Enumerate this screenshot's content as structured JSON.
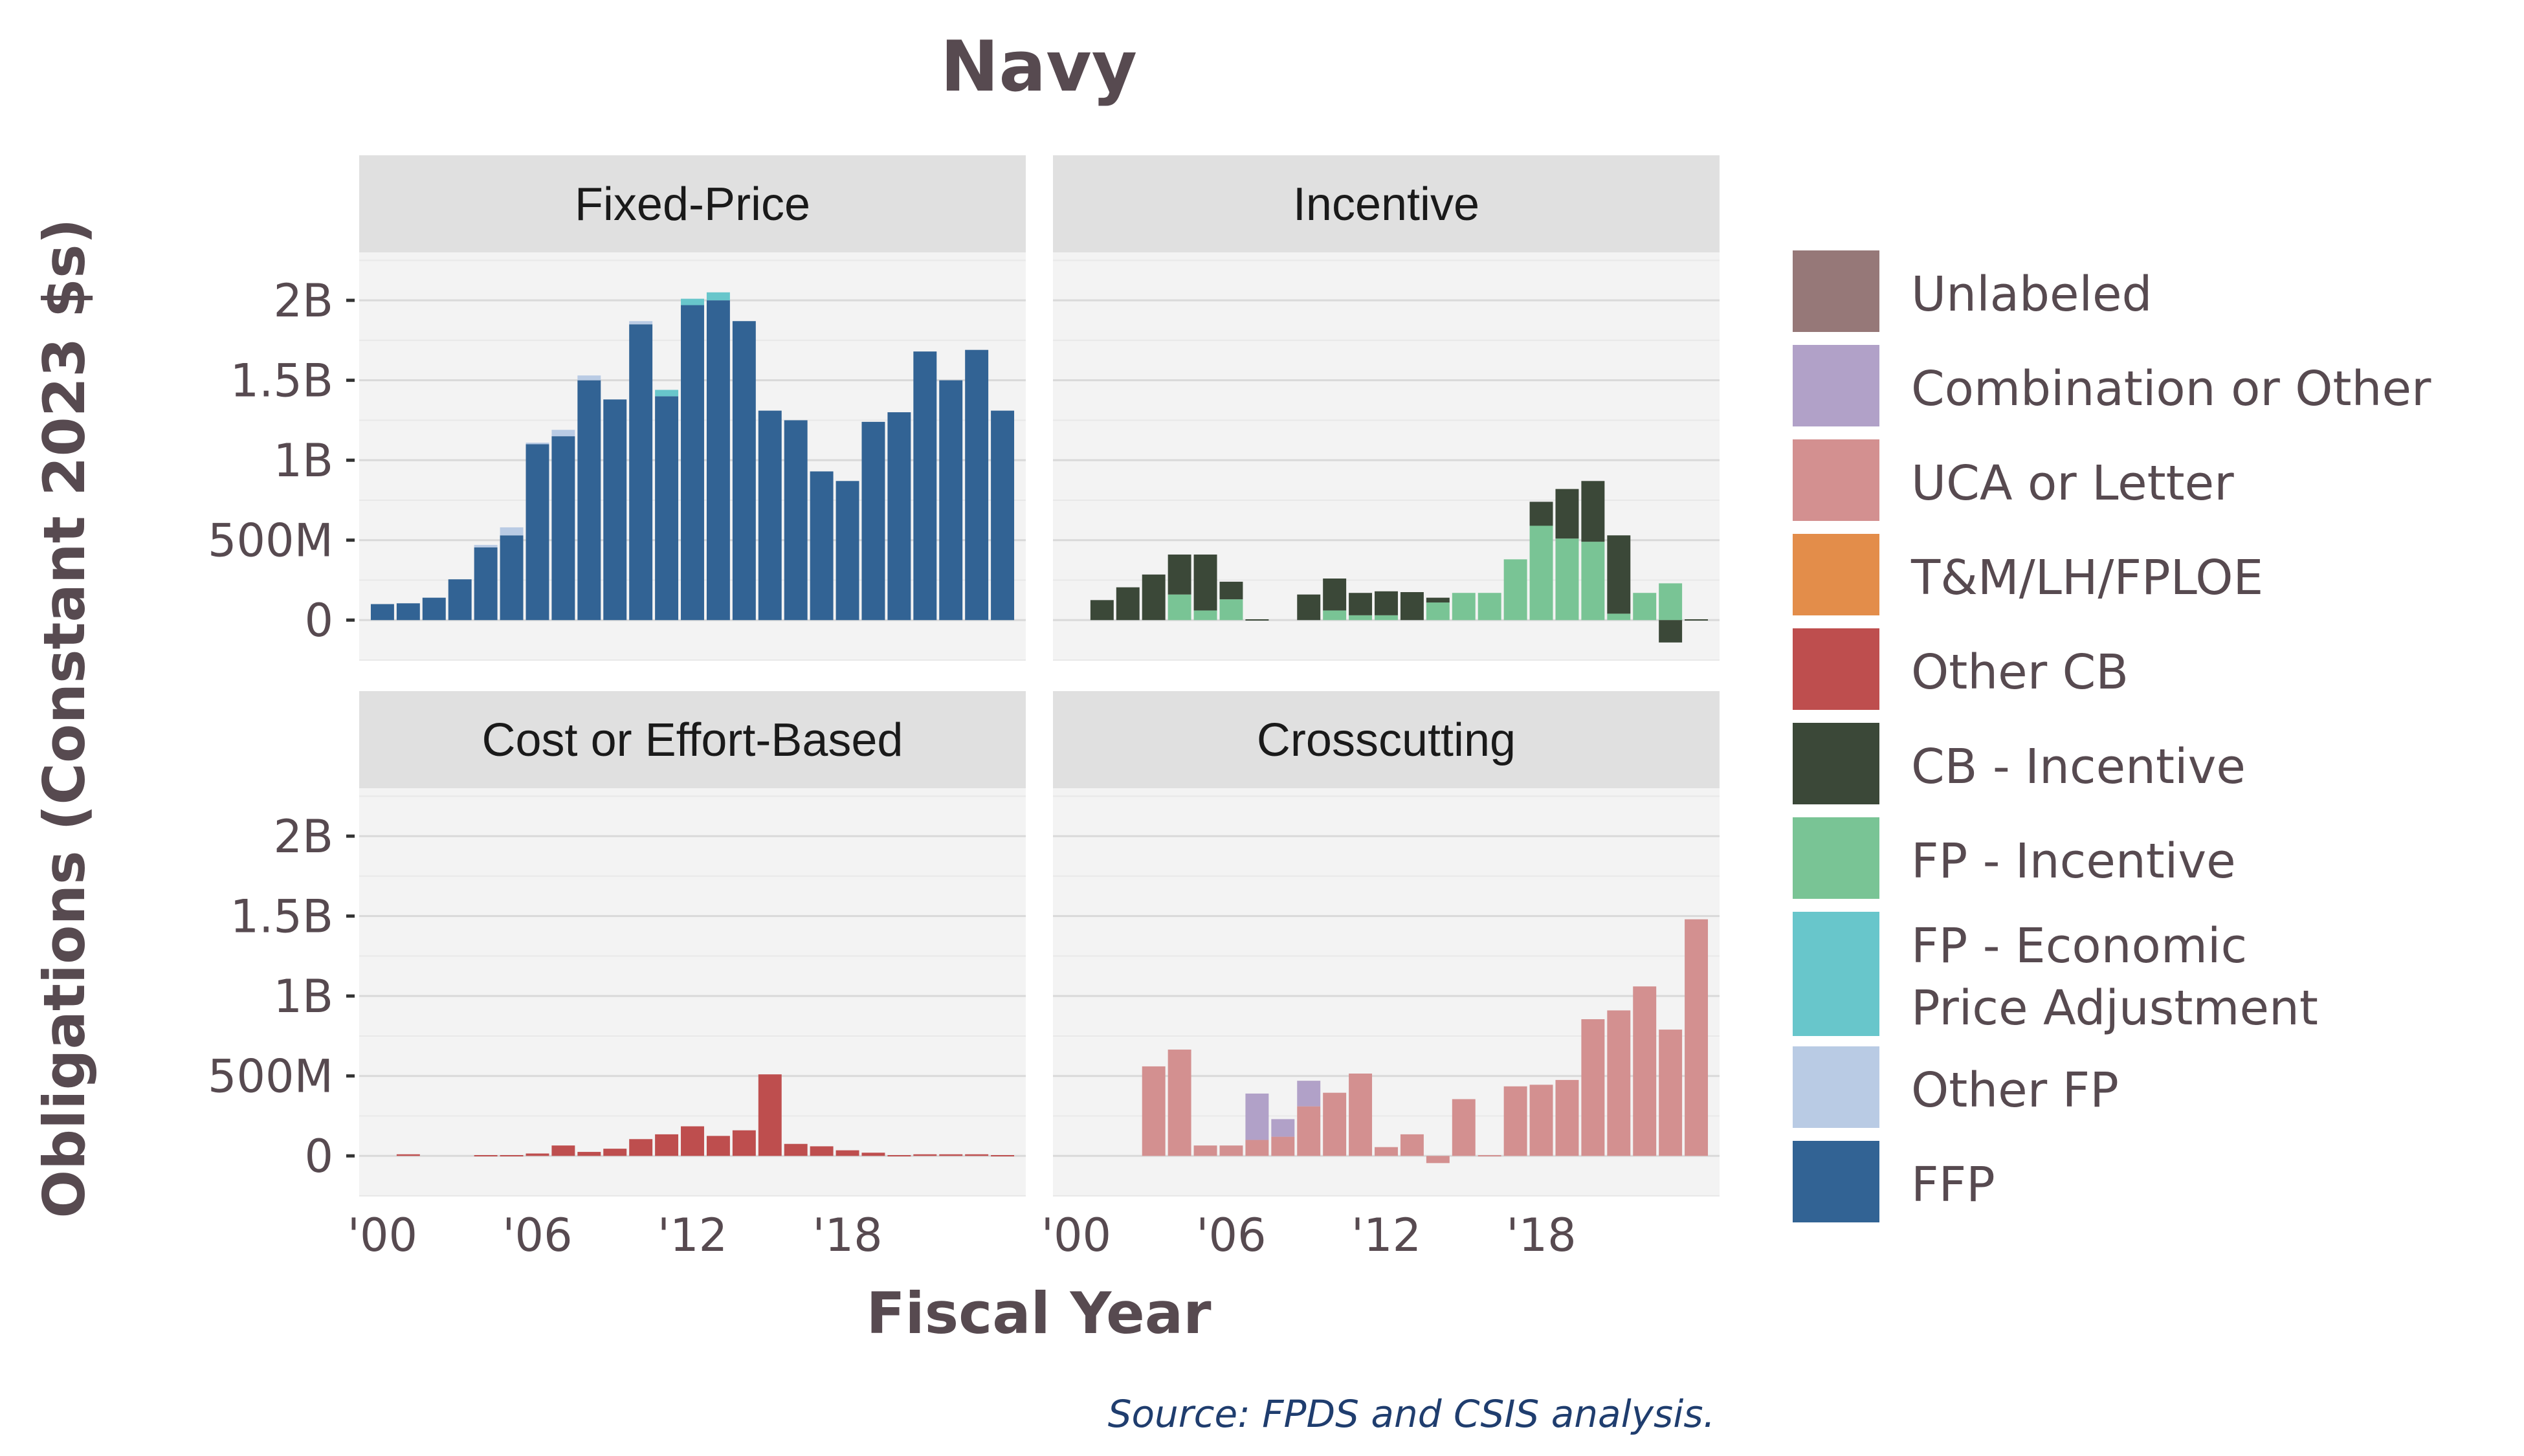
{
  "chart_data": {
    "type": "bar",
    "stacked": true,
    "faceted": true,
    "title": "Navy",
    "xlabel": "Fiscal Year",
    "ylabel": "Obligations (Constant 2023 $s)",
    "source": "Source: FPDS and CSIS analysis.",
    "x_range": [
      2000,
      2023
    ],
    "ylim": [
      -250000000,
      2300000000
    ],
    "x_ticks": [
      {
        "value": 2000,
        "label": "'00"
      },
      {
        "value": 2006,
        "label": "'06"
      },
      {
        "value": 2012,
        "label": "'12"
      },
      {
        "value": 2018,
        "label": "'18"
      }
    ],
    "y_ticks": [
      {
        "value": 0,
        "label": "0"
      },
      {
        "value": 500000000,
        "label": "500M"
      },
      {
        "value": 1000000000,
        "label": "1B"
      },
      {
        "value": 1500000000,
        "label": "1.5B"
      },
      {
        "value": 2000000000,
        "label": "2B"
      }
    ],
    "grid": true,
    "legend_position": "right",
    "legend": [
      {
        "label": "Unlabeled",
        "color": "#967878"
      },
      {
        "label": "Combination or Other",
        "color": "#B1A1C8"
      },
      {
        "label": "UCA or Letter",
        "color": "#D39090"
      },
      {
        "label": "T&M/LH/FPLOE",
        "color": "#E38D4A"
      },
      {
        "label": "Other CB",
        "color": "#BE4E4E"
      },
      {
        "label": "CB - Incentive",
        "color": "#3B4838"
      },
      {
        "label": "FP - Incentive",
        "color": "#79C495"
      },
      {
        "label": "FP - Economic",
        "label2": "Price Adjustment",
        "color": "#68C6CB"
      },
      {
        "label": "Other FP",
        "color": "#B9CBE4"
      },
      {
        "label": "FFP",
        "color": "#326394"
      }
    ],
    "panels": [
      {
        "title": "Fixed-Price",
        "series": [
          {
            "name": "FFP",
            "color": "#326394",
            "points": [
              [
                2000,
                100000000
              ],
              [
                2001,
                105000000
              ],
              [
                2002,
                140000000
              ],
              [
                2003,
                255000000
              ],
              [
                2004,
                455000000
              ],
              [
                2005,
                530000000
              ],
              [
                2006,
                1100000000
              ],
              [
                2007,
                1150000000
              ],
              [
                2008,
                1500000000
              ],
              [
                2009,
                1380000000
              ],
              [
                2010,
                1850000000
              ],
              [
                2011,
                1400000000
              ],
              [
                2012,
                1970000000
              ],
              [
                2013,
                2000000000
              ],
              [
                2014,
                1870000000
              ],
              [
                2015,
                1310000000
              ],
              [
                2016,
                1250000000
              ],
              [
                2017,
                930000000
              ],
              [
                2018,
                870000000
              ],
              [
                2019,
                1240000000
              ],
              [
                2020,
                1300000000
              ],
              [
                2021,
                1680000000
              ],
              [
                2022,
                1500000000
              ],
              [
                2023,
                1690000000
              ],
              [
                2024,
                1310000000
              ]
            ]
          },
          {
            "name": "Other FP",
            "color": "#B9CBE4",
            "points": [
              [
                2004,
                15000000
              ],
              [
                2005,
                50000000
              ],
              [
                2006,
                10000000
              ],
              [
                2007,
                40000000
              ],
              [
                2008,
                30000000
              ],
              [
                2010,
                20000000
              ]
            ]
          },
          {
            "name": "FP - Economic Price Adjustment",
            "color": "#68C6CB",
            "points": [
              [
                2011,
                40000000
              ],
              [
                2012,
                40000000
              ],
              [
                2013,
                50000000
              ]
            ]
          }
        ]
      },
      {
        "title": "Incentive",
        "series": [
          {
            "name": "FP - Incentive",
            "color": "#79C495",
            "points": [
              [
                2004,
                160000000
              ],
              [
                2005,
                60000000
              ],
              [
                2006,
                130000000
              ],
              [
                2010,
                60000000
              ],
              [
                2011,
                30000000
              ],
              [
                2012,
                30000000
              ],
              [
                2014,
                110000000
              ],
              [
                2015,
                170000000
              ],
              [
                2016,
                170000000
              ],
              [
                2017,
                380000000
              ],
              [
                2018,
                590000000
              ],
              [
                2019,
                510000000
              ],
              [
                2020,
                490000000
              ],
              [
                2021,
                40000000
              ],
              [
                2022,
                170000000
              ],
              [
                2023,
                230000000
              ]
            ]
          },
          {
            "name": "CB - Incentive",
            "color": "#3B4838",
            "points": [
              [
                2001,
                125000000
              ],
              [
                2002,
                205000000
              ],
              [
                2003,
                285000000
              ],
              [
                2004,
                250000000
              ],
              [
                2005,
                350000000
              ],
              [
                2006,
                110000000
              ],
              [
                2007,
                5000000
              ],
              [
                2009,
                160000000
              ],
              [
                2010,
                200000000
              ],
              [
                2011,
                140000000
              ],
              [
                2012,
                150000000
              ],
              [
                2013,
                175000000
              ],
              [
                2014,
                30000000
              ],
              [
                2018,
                150000000
              ],
              [
                2019,
                310000000
              ],
              [
                2020,
                380000000
              ],
              [
                2021,
                490000000
              ],
              [
                2022,
                0
              ],
              [
                2023,
                -140000000
              ],
              [
                2024,
                5000000
              ]
            ]
          }
        ]
      },
      {
        "title": "Cost or Effort-Based",
        "series": [
          {
            "name": "Other CB",
            "color": "#BE4E4E",
            "points": [
              [
                2001,
                10000000
              ],
              [
                2004,
                5000000
              ],
              [
                2005,
                5000000
              ],
              [
                2006,
                15000000
              ],
              [
                2007,
                65000000
              ],
              [
                2008,
                25000000
              ],
              [
                2009,
                45000000
              ],
              [
                2010,
                105000000
              ],
              [
                2011,
                135000000
              ],
              [
                2012,
                185000000
              ],
              [
                2013,
                125000000
              ],
              [
                2014,
                160000000
              ],
              [
                2015,
                510000000
              ],
              [
                2016,
                75000000
              ],
              [
                2017,
                60000000
              ],
              [
                2018,
                35000000
              ],
              [
                2019,
                20000000
              ],
              [
                2020,
                5000000
              ],
              [
                2021,
                10000000
              ],
              [
                2022,
                10000000
              ],
              [
                2023,
                10000000
              ],
              [
                2024,
                5000000
              ]
            ]
          }
        ]
      },
      {
        "title": "Crosscutting",
        "series": [
          {
            "name": "UCA or Letter",
            "color": "#D39090",
            "points": [
              [
                2003,
                560000000
              ],
              [
                2004,
                665000000
              ],
              [
                2005,
                65000000
              ],
              [
                2006,
                65000000
              ],
              [
                2007,
                100000000
              ],
              [
                2008,
                120000000
              ],
              [
                2009,
                310000000
              ],
              [
                2010,
                395000000
              ],
              [
                2011,
                515000000
              ],
              [
                2012,
                55000000
              ],
              [
                2013,
                135000000
              ],
              [
                2014,
                -45000000
              ],
              [
                2015,
                355000000
              ],
              [
                2016,
                5000000
              ],
              [
                2017,
                435000000
              ],
              [
                2018,
                445000000
              ],
              [
                2019,
                475000000
              ],
              [
                2020,
                855000000
              ],
              [
                2021,
                910000000
              ],
              [
                2022,
                1060000000
              ],
              [
                2023,
                790000000
              ],
              [
                2024,
                1480000000
              ]
            ]
          },
          {
            "name": "Combination or Other",
            "color": "#B1A1C8",
            "points": [
              [
                2007,
                290000000
              ],
              [
                2008,
                110000000
              ],
              [
                2009,
                160000000
              ]
            ]
          }
        ]
      }
    ]
  }
}
